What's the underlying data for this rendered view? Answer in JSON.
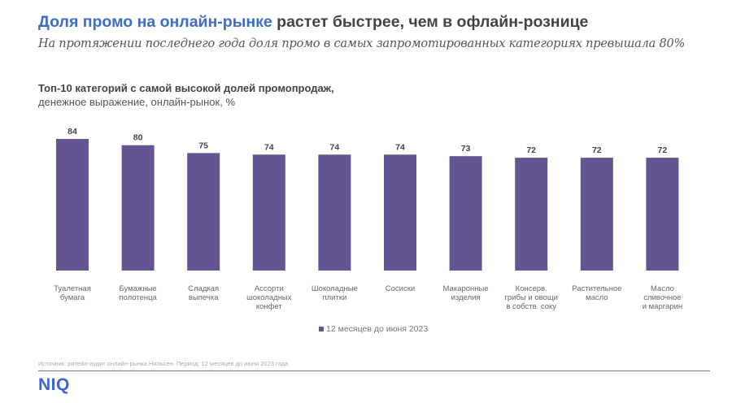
{
  "header": {
    "title_accent": "Доля промо на онлайн-рынке",
    "title_rest": " растет быстрее, чем в офлайн-рознице",
    "subtitle": "На протяжении последнего года доля промо в самых запромотированных категориях превышала 80%"
  },
  "colors": {
    "accent": "#3d6cc9",
    "bar": "#635592",
    "logo": "#3d63d8"
  },
  "chart_data": {
    "type": "bar",
    "title": "Топ-10 категорий с самой высокой долей промопродаж,",
    "subtitle": "денежное выражение, онлайн-рынок, %",
    "xlabel": "",
    "ylabel": "",
    "ylim": [
      0,
      84
    ],
    "grid": false,
    "legend_position": "bottom-center",
    "categories": [
      [
        "Туалетная",
        "бумага"
      ],
      [
        "Бумажные",
        "полотенца"
      ],
      [
        "Сладкая",
        "выпечка"
      ],
      [
        "Ассорти",
        "шоколадных",
        "конфет"
      ],
      [
        "Шоколадные",
        "плитки"
      ],
      [
        "Сосиски"
      ],
      [
        "Макаронные",
        "изделия"
      ],
      [
        "Консерв.",
        "грибы и овощи",
        "в собств. соку"
      ],
      [
        "Растительное",
        "масло"
      ],
      [
        "Масло",
        "сливочное",
        "и маргарин"
      ]
    ],
    "series": [
      {
        "name": "12 месяцев до июня 2023",
        "values": [
          84,
          80,
          75,
          74,
          74,
          74,
          73,
          72,
          72,
          72
        ]
      }
    ]
  },
  "footer": {
    "source": "Источник: ритейл-аудит онлайн-рынка Нильсен. Период: 12 месяцев до июня 2023 года",
    "logo": "NIQ"
  }
}
